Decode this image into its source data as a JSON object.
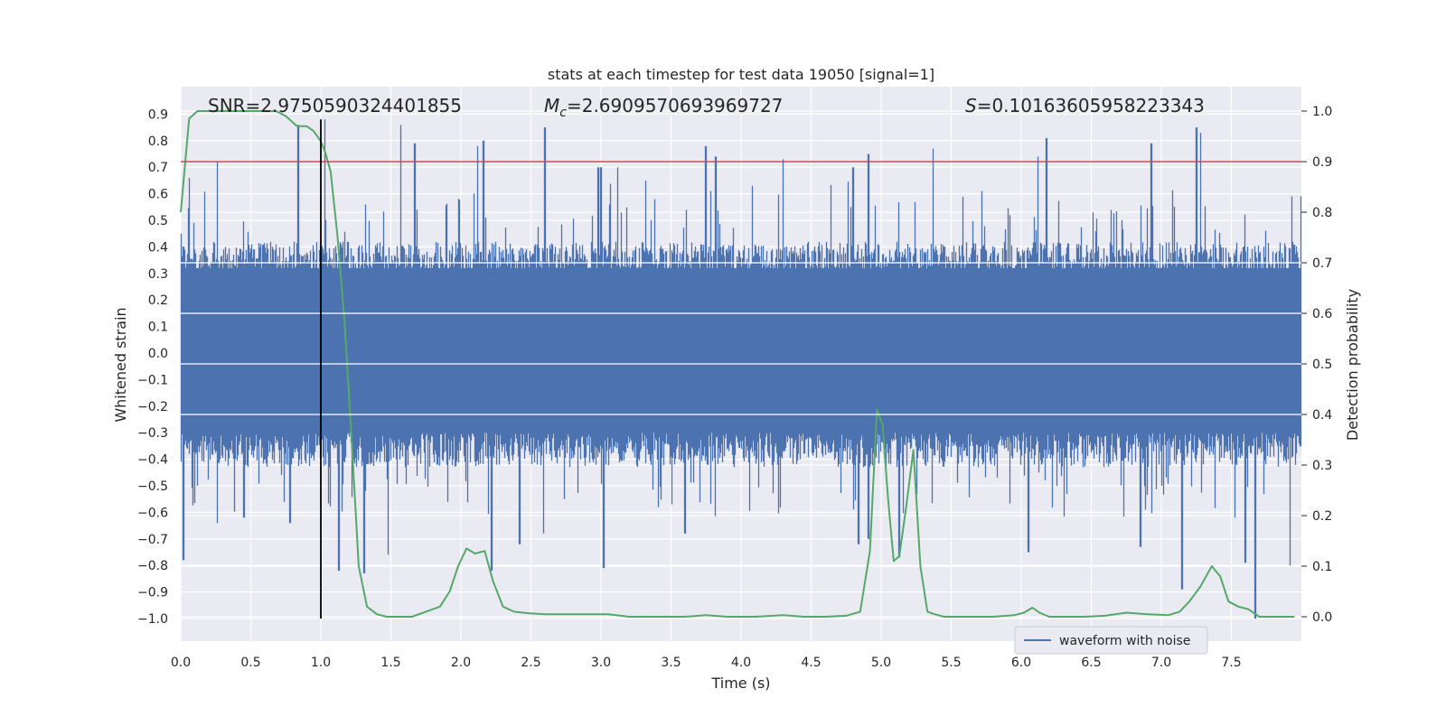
{
  "chart_data": {
    "type": "line",
    "title": "stats at each timestep for test data 19050 [signal=1]",
    "xlabel": "Time (s)",
    "ylabel": "Whitened strain",
    "y2label": "Detection probability",
    "xlim": [
      0.0,
      8.0
    ],
    "ylim": [
      -1.09,
      1.0
    ],
    "y2lim": [
      -0.05,
      1.045
    ],
    "x_ticks": [
      "0.0",
      "0.5",
      "1.0",
      "1.5",
      "2.0",
      "2.5",
      "3.0",
      "3.5",
      "4.0",
      "4.5",
      "5.0",
      "5.5",
      "6.0",
      "6.5",
      "7.0",
      "7.5"
    ],
    "y_ticks": [
      "0.9",
      "0.8",
      "0.7",
      "0.6",
      "0.5",
      "0.4",
      "0.3",
      "0.2",
      "0.1",
      "0.0",
      "−0.1",
      "−0.2",
      "−0.3",
      "−0.4",
      "−0.5",
      "−0.6",
      "−0.7",
      "−0.8",
      "−0.9",
      "−1.0"
    ],
    "y2_ticks": [
      "1.0",
      "0.9",
      "0.8",
      "0.7",
      "0.6",
      "0.5",
      "0.4",
      "0.3",
      "0.2",
      "0.1",
      "0.0"
    ],
    "grid": true,
    "legend": {
      "placement": "lower-right",
      "entries": [
        "waveform with noise"
      ]
    },
    "annotations": {
      "snr": "SNR=2.9750590324401855",
      "mc_symbol": "M",
      "mc_sub": "c",
      "mc_value": "=2.6909570693969727",
      "s_symbol": "S",
      "s_value": "=0.10163605958223343"
    },
    "threshold": {
      "probability": 0.9,
      "color": "#c44e52"
    },
    "vertical_marker": {
      "x": 1.0,
      "y_from": -1.0,
      "y_to": 0.88,
      "color": "#000000"
    },
    "series": [
      {
        "name": "waveform with noise",
        "axis": "left",
        "color": "#4c72b0",
        "description_level": "noisy whitened strain, sampled densely",
        "amplitude_core": 0.4,
        "peaks_up": [
          [
            0.0,
            0.45
          ],
          [
            0.06,
            0.66
          ],
          [
            0.26,
            0.72
          ],
          [
            0.84,
            0.86
          ],
          [
            1.03,
            0.88
          ],
          [
            1.57,
            0.86
          ],
          [
            1.67,
            0.79
          ],
          [
            2.12,
            0.78
          ],
          [
            2.16,
            0.8
          ],
          [
            2.6,
            0.85
          ],
          [
            2.98,
            0.7
          ],
          [
            3.0,
            0.7
          ],
          [
            3.12,
            0.7
          ],
          [
            3.75,
            0.78
          ],
          [
            3.82,
            0.74
          ],
          [
            4.3,
            0.73
          ],
          [
            4.8,
            0.7
          ],
          [
            4.91,
            0.75
          ],
          [
            5.37,
            0.77
          ],
          [
            6.18,
            0.81
          ],
          [
            6.12,
            0.74
          ],
          [
            6.93,
            0.79
          ],
          [
            7.25,
            0.85
          ],
          [
            7.28,
            0.83
          ]
        ],
        "peaks_down": [
          [
            0.02,
            -0.78
          ],
          [
            0.26,
            -0.64
          ],
          [
            0.45,
            -0.62
          ],
          [
            0.78,
            -0.64
          ],
          [
            1.13,
            -0.82
          ],
          [
            1.31,
            -0.83
          ],
          [
            1.48,
            -0.76
          ],
          [
            2.22,
            -0.82
          ],
          [
            2.42,
            -0.72
          ],
          [
            2.59,
            -0.68
          ],
          [
            3.02,
            -0.81
          ],
          [
            3.6,
            -0.68
          ],
          [
            4.84,
            -0.72
          ],
          [
            4.91,
            -0.7
          ],
          [
            5.13,
            -0.77
          ],
          [
            6.05,
            -0.75
          ],
          [
            6.85,
            -0.73
          ],
          [
            7.15,
            -0.89
          ],
          [
            7.6,
            -0.79
          ],
          [
            7.67,
            -1.0
          ],
          [
            7.92,
            -0.8
          ]
        ]
      },
      {
        "name": "",
        "axis": "right",
        "color": "#55a868",
        "x": [
          0.0,
          0.06,
          0.12,
          0.2,
          0.3,
          0.4,
          0.5,
          0.6,
          0.68,
          0.75,
          0.83,
          0.9,
          0.95,
          1.0,
          1.03,
          1.07,
          1.12,
          1.17,
          1.22,
          1.27,
          1.33,
          1.4,
          1.47,
          1.55,
          1.65,
          1.75,
          1.85,
          1.92,
          1.98,
          2.04,
          2.1,
          2.17,
          2.23,
          2.3,
          2.38,
          2.48,
          2.6,
          2.75,
          2.9,
          3.05,
          3.2,
          3.4,
          3.6,
          3.75,
          3.9,
          4.1,
          4.3,
          4.45,
          4.6,
          4.75,
          4.85,
          4.92,
          4.97,
          5.01,
          5.05,
          5.09,
          5.13,
          5.18,
          5.23,
          5.28,
          5.33,
          5.38,
          5.45,
          5.6,
          5.8,
          5.95,
          6.02,
          6.08,
          6.13,
          6.2,
          6.3,
          6.45,
          6.6,
          6.75,
          6.9,
          7.05,
          7.13,
          7.2,
          7.28,
          7.36,
          7.42,
          7.48,
          7.55,
          7.62,
          7.7,
          7.8,
          7.95
        ],
        "y": [
          0.8,
          0.985,
          1.0,
          1.0,
          1.0,
          1.0,
          1.0,
          1.0,
          1.0,
          0.99,
          0.97,
          0.97,
          0.96,
          0.94,
          0.92,
          0.88,
          0.75,
          0.58,
          0.35,
          0.1,
          0.02,
          0.005,
          0.0,
          0.0,
          0.0,
          0.01,
          0.02,
          0.05,
          0.1,
          0.135,
          0.125,
          0.13,
          0.07,
          0.02,
          0.01,
          0.007,
          0.005,
          0.005,
          0.005,
          0.005,
          0.0,
          0.0,
          0.0,
          0.003,
          0.0,
          0.0,
          0.003,
          0.0,
          0.0,
          0.002,
          0.01,
          0.13,
          0.41,
          0.38,
          0.23,
          0.11,
          0.12,
          0.22,
          0.33,
          0.1,
          0.01,
          0.005,
          0.0,
          0.0,
          0.0,
          0.003,
          0.008,
          0.018,
          0.008,
          0.0,
          0.0,
          0.0,
          0.002,
          0.008,
          0.005,
          0.003,
          0.01,
          0.03,
          0.06,
          0.1,
          0.08,
          0.03,
          0.02,
          0.015,
          0.0,
          0.0,
          0.0
        ]
      }
    ]
  }
}
